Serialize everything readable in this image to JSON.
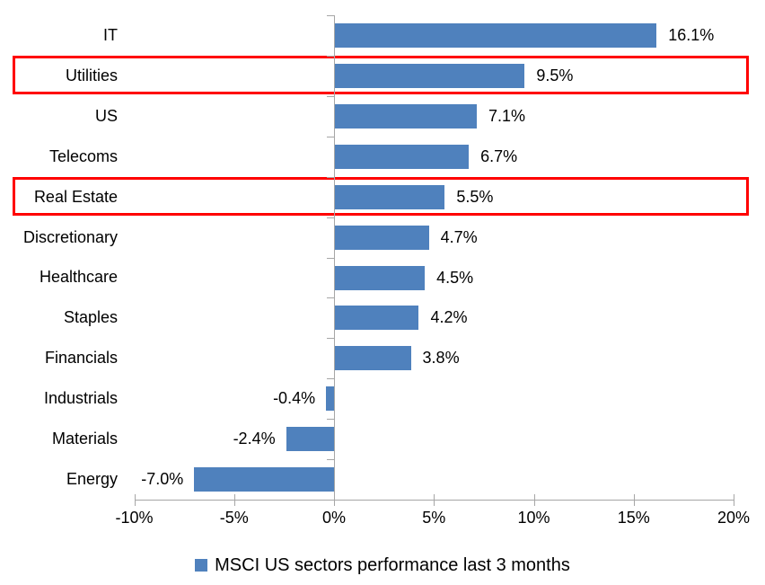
{
  "chart_data": {
    "type": "bar",
    "orientation": "horizontal",
    "categories": [
      "IT",
      "Utilities",
      "US",
      "Telecoms",
      "Real Estate",
      "Discretionary",
      "Healthcare",
      "Staples",
      "Financials",
      "Industrials",
      "Materials",
      "Energy"
    ],
    "values": [
      16.1,
      9.5,
      7.1,
      6.7,
      5.5,
      4.7,
      4.5,
      4.2,
      3.8,
      -0.4,
      -2.4,
      -7.0
    ],
    "data_labels": [
      "16.1%",
      "9.5%",
      "7.1%",
      "6.7%",
      "5.5%",
      "4.7%",
      "4.5%",
      "4.2%",
      "3.8%",
      "-0.4%",
      "-2.4%",
      "-7.0%"
    ],
    "x_ticks": [
      -10,
      -5,
      0,
      5,
      10,
      15,
      20
    ],
    "x_tick_labels": [
      "-10%",
      "-5%",
      "0%",
      "5%",
      "10%",
      "15%",
      "20%"
    ],
    "xlim": [
      -10,
      20
    ],
    "grid": "off",
    "title": "",
    "xlabel": "",
    "ylabel": "",
    "bar_color": "#4F81BD",
    "axis_color": "#A6A6A6",
    "text_color": "#000000",
    "highlight_color": "#FF0000",
    "highlighted_categories": [
      "Utilities",
      "Real Estate"
    ],
    "legend": {
      "label": "MSCI US sectors performance last 3 months",
      "position": "bottom",
      "marker": "square",
      "marker_color": "#4F81BD"
    }
  }
}
